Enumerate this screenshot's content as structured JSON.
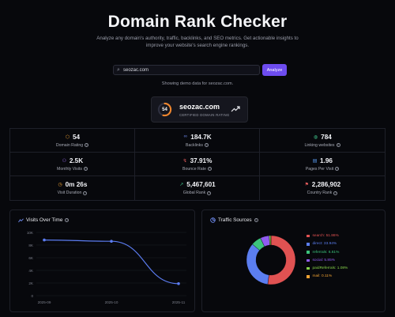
{
  "hero": {
    "title": "Domain Rank Checker",
    "subtitle": "Analyze any domain's authority, traffic, backlinks, and SEO metrics. Get actionable insights to improve your website's search engine rankings."
  },
  "search": {
    "value": "seozac.com",
    "icon": "search-icon",
    "button_label": "Analyze"
  },
  "demo_note": "Showing demo data for seozac.com.",
  "domain_card": {
    "score": "54",
    "score_fraction": 0.54,
    "name": "seozac.com",
    "subtitle": "CERTIFIED DOMAIN RATING",
    "badge_color": "#f0862d"
  },
  "metrics": [
    {
      "value": "54",
      "label": "Domain Rating",
      "icon": "shield-icon",
      "glyph": "⬡",
      "color": "#f0a233"
    },
    {
      "value": "184.7K",
      "label": "Backlinks",
      "icon": "link-icon",
      "glyph": "∞",
      "color": "#6f8cf0"
    },
    {
      "value": "784",
      "label": "Linking websites",
      "icon": "globe-icon",
      "glyph": "◍",
      "color": "#3fc28a"
    },
    {
      "value": "2.5K",
      "label": "Monthly Visits",
      "icon": "users-icon",
      "glyph": "⚇",
      "color": "#9a6cf0"
    },
    {
      "value": "37.91%",
      "label": "Bounce Rate",
      "icon": "bounce-icon",
      "glyph": "↯",
      "color": "#e35c5c"
    },
    {
      "value": "1.96",
      "label": "Pages Per Visit",
      "icon": "pages-icon",
      "glyph": "▤",
      "color": "#5b9cf0"
    },
    {
      "value": "0m 26s",
      "label": "Visit Duration",
      "icon": "clock-icon",
      "glyph": "◷",
      "color": "#f0a233"
    },
    {
      "value": "5,467,601",
      "label": "Global Rank",
      "icon": "trend-up-icon",
      "glyph": "↗",
      "color": "#3fc28a"
    },
    {
      "value": "2,286,902",
      "label": "Country Rank",
      "icon": "flag-icon",
      "glyph": "⚑",
      "color": "#e35c5c"
    }
  ],
  "visits_panel": {
    "title": "Visits Over Time",
    "icon": "chart-line-icon"
  },
  "traffic_panel": {
    "title": "Traffic Sources",
    "icon": "pie-chart-icon"
  },
  "chart_data": [
    {
      "type": "line",
      "title": "Visits Over Time",
      "x": [
        "2025-09",
        "2025-10",
        "2025-11"
      ],
      "y_ticks": [
        "10K",
        "8K",
        "6K",
        "4K",
        "2K",
        "0"
      ],
      "ylim": [
        0,
        10000
      ],
      "values": [
        8800,
        8600,
        1900
      ],
      "line_color": "#5b7cf0",
      "grid": true
    },
    {
      "type": "pie",
      "title": "Traffic Sources",
      "labels": [
        "search",
        "direct",
        "referrals",
        "social",
        "paidReferrals",
        "mail"
      ],
      "values": [
        51.86,
        33.94,
        6.61,
        5.85,
        1.08,
        0.11
      ],
      "display": [
        "search: 51.86%",
        "direct: 33.94%",
        "referrals: 6.61%",
        "social: 5.85%",
        "paidReferrals: 1.08%",
        "mail: 0.11%"
      ],
      "colors": [
        "#e05252",
        "#5b7ef0",
        "#3cc47c",
        "#8f5cf0",
        "#86d24a",
        "#f0a233"
      ],
      "donut": true
    }
  ]
}
